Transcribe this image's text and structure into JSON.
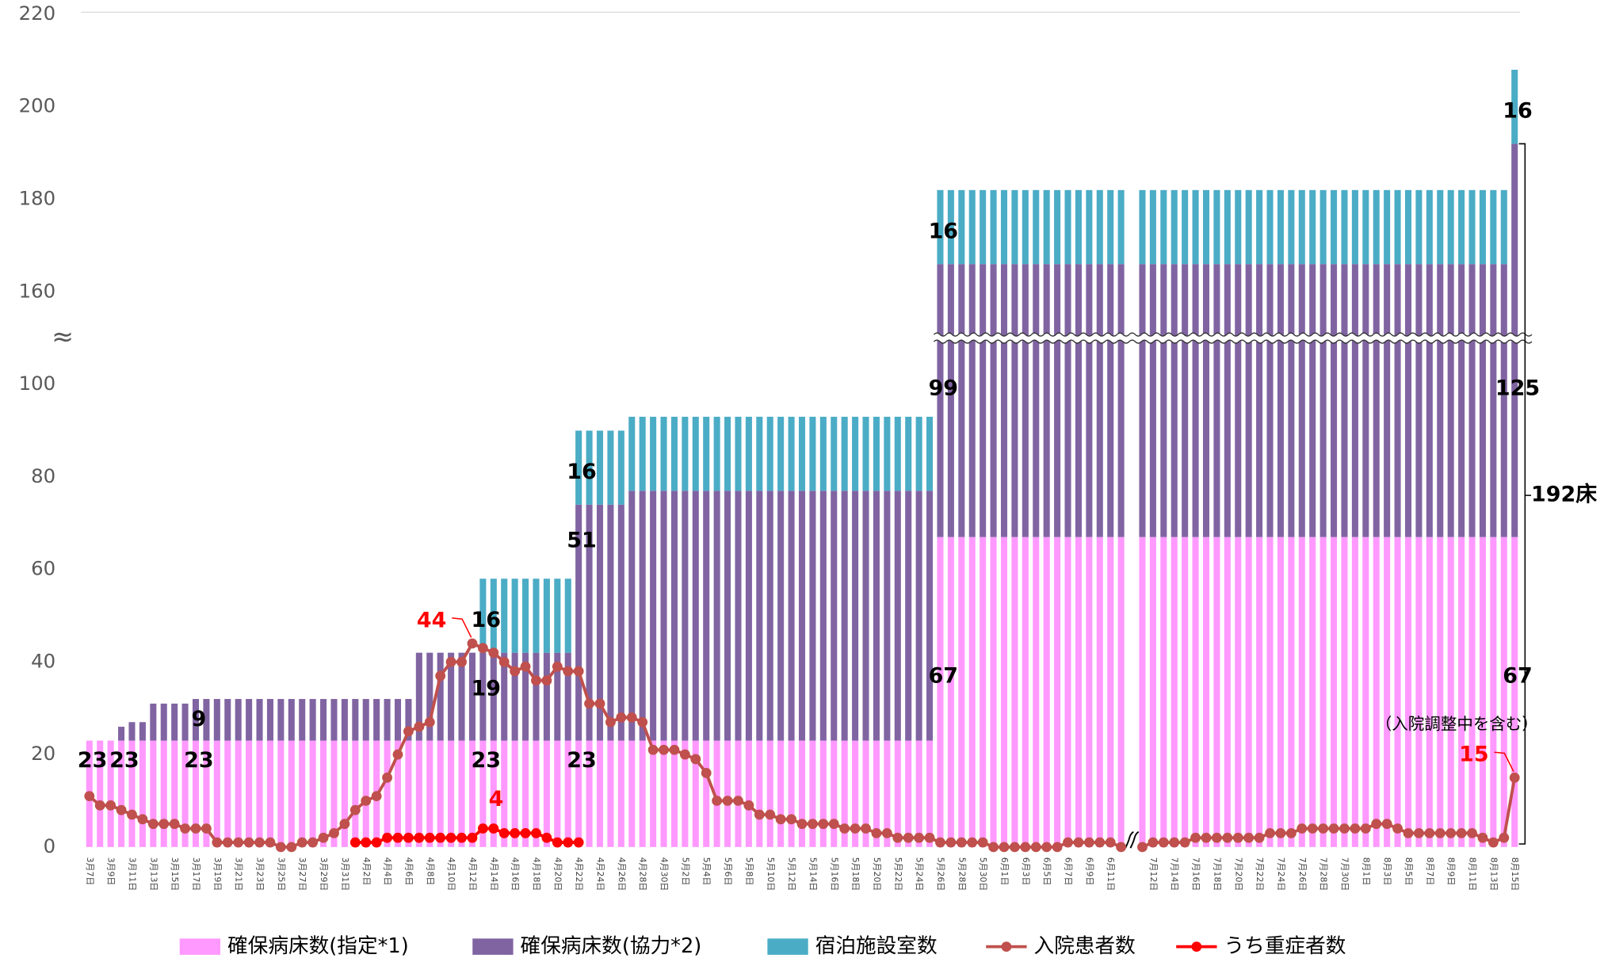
{
  "chart_data": {
    "type": "bar",
    "categories": [
      "3月7日",
      null,
      "3月9日",
      null,
      "3月11日",
      null,
      "3月13日",
      null,
      "3月15日",
      null,
      "3月17日",
      null,
      "3月19日",
      null,
      "3月21日",
      null,
      "3月23日",
      null,
      "3月25日",
      null,
      "3月27日",
      null,
      "3月29日",
      null,
      "3月31日",
      null,
      "4月2日",
      null,
      "4月4日",
      null,
      "4月6日",
      null,
      "4月8日",
      null,
      "4月10日",
      null,
      "4月12日",
      null,
      "4月14日",
      null,
      "4月16日",
      null,
      "4月18日",
      null,
      "4月20日",
      null,
      "4月22日",
      null,
      "4月24日",
      null,
      "4月26日",
      null,
      "4月28日",
      null,
      "4月30日",
      null,
      "5月2日",
      null,
      "5月4日",
      null,
      "5月6日",
      null,
      "5月8日",
      null,
      "5月10日",
      null,
      "5月12日",
      null,
      "5月14日",
      null,
      "5月16日",
      null,
      "5月18日",
      null,
      "5月20日",
      null,
      "5月22日",
      null,
      "5月24日",
      null,
      "5月26日",
      null,
      "5月28日",
      null,
      "5月30日",
      null,
      "6月1日",
      null,
      "6月3日",
      null,
      "6月5日",
      null,
      "6月7日",
      null,
      "6月9日",
      null,
      "6月11日",
      null,
      null,
      null,
      "7月12日",
      null,
      "7月14日",
      null,
      "7月16日",
      null,
      "7月18日",
      null,
      "7月20日",
      null,
      "7月22日",
      null,
      "7月24日",
      null,
      "7月26日",
      null,
      "7月28日",
      null,
      "7月30日",
      null,
      "8月1日",
      null,
      "8月3日",
      null,
      "8月5日",
      null,
      "8月7日",
      null,
      "8月9日",
      null,
      "8月11日",
      null,
      "8月13日",
      null,
      "8月15日"
    ],
    "series": [
      {
        "name": "確保病床数(指定*1)",
        "type": "bar",
        "color": "#ff99ff",
        "labeled": [
          0,
          3,
          10,
          37,
          46,
          80,
          134
        ],
        "values": [
          23,
          23,
          23,
          23,
          23,
          23,
          23,
          23,
          23,
          23,
          23,
          23,
          23,
          23,
          23,
          23,
          23,
          23,
          23,
          23,
          23,
          23,
          23,
          23,
          23,
          23,
          23,
          23,
          23,
          23,
          23,
          23,
          23,
          23,
          23,
          23,
          23,
          23,
          23,
          23,
          23,
          23,
          23,
          23,
          23,
          23,
          23,
          23,
          23,
          23,
          23,
          23,
          23,
          23,
          23,
          23,
          23,
          23,
          23,
          23,
          23,
          23,
          23,
          23,
          23,
          23,
          23,
          23,
          23,
          23,
          23,
          23,
          23,
          23,
          23,
          23,
          23,
          23,
          23,
          23,
          67,
          67,
          67,
          67,
          67,
          67,
          67,
          67,
          67,
          67,
          67,
          67,
          67,
          67,
          67,
          67,
          67,
          67,
          null,
          67,
          67,
          67,
          67,
          67,
          67,
          67,
          67,
          67,
          67,
          67,
          67,
          67,
          67,
          67,
          67,
          67,
          67,
          67,
          67,
          67,
          67,
          67,
          67,
          67,
          67,
          67,
          67,
          67,
          67,
          67,
          67,
          67,
          67,
          67,
          67
        ]
      },
      {
        "name": "確保病床数(協力*2)",
        "type": "bar",
        "color": "#8064a2",
        "labeled": [
          10,
          37,
          46,
          80,
          134
        ],
        "values": [
          0,
          0,
          0,
          3,
          4,
          4,
          8,
          8,
          8,
          8,
          9,
          9,
          9,
          9,
          9,
          9,
          9,
          9,
          9,
          9,
          9,
          9,
          9,
          9,
          9,
          9,
          9,
          9,
          9,
          9,
          9,
          19,
          19,
          19,
          19,
          19,
          19,
          19,
          19,
          19,
          19,
          19,
          19,
          19,
          19,
          19,
          51,
          51,
          51,
          51,
          51,
          54,
          54,
          54,
          54,
          54,
          54,
          54,
          54,
          54,
          54,
          54,
          54,
          54,
          54,
          54,
          54,
          54,
          54,
          54,
          54,
          54,
          54,
          54,
          54,
          54,
          54,
          54,
          54,
          54,
          99,
          99,
          99,
          99,
          99,
          99,
          99,
          99,
          99,
          99,
          99,
          99,
          99,
          99,
          99,
          99,
          99,
          99,
          null,
          99,
          99,
          99,
          99,
          99,
          99,
          99,
          99,
          99,
          99,
          99,
          99,
          99,
          99,
          99,
          99,
          99,
          99,
          99,
          99,
          99,
          99,
          99,
          99,
          99,
          99,
          99,
          99,
          99,
          99,
          99,
          99,
          99,
          99,
          99,
          125
        ]
      },
      {
        "name": "宿泊施設室数",
        "type": "bar",
        "color": "#4bacc6",
        "labeled": [
          37,
          46,
          80,
          134
        ],
        "values": [
          0,
          0,
          0,
          0,
          0,
          0,
          0,
          0,
          0,
          0,
          0,
          0,
          0,
          0,
          0,
          0,
          0,
          0,
          0,
          0,
          0,
          0,
          0,
          0,
          0,
          0,
          0,
          0,
          0,
          0,
          0,
          0,
          0,
          0,
          0,
          0,
          0,
          16,
          16,
          16,
          16,
          16,
          16,
          16,
          16,
          16,
          16,
          16,
          16,
          16,
          16,
          16,
          16,
          16,
          16,
          16,
          16,
          16,
          16,
          16,
          16,
          16,
          16,
          16,
          16,
          16,
          16,
          16,
          16,
          16,
          16,
          16,
          16,
          16,
          16,
          16,
          16,
          16,
          16,
          16,
          16,
          16,
          16,
          16,
          16,
          16,
          16,
          16,
          16,
          16,
          16,
          16,
          16,
          16,
          16,
          16,
          16,
          16,
          null,
          16,
          16,
          16,
          16,
          16,
          16,
          16,
          16,
          16,
          16,
          16,
          16,
          16,
          16,
          16,
          16,
          16,
          16,
          16,
          16,
          16,
          16,
          16,
          16,
          16,
          16,
          16,
          16,
          16,
          16,
          16,
          16,
          16,
          16,
          16,
          16
        ]
      },
      {
        "name": "入院患者数",
        "type": "line",
        "color": "#c0504d",
        "labeled": [
          36,
          134
        ],
        "values": [
          11,
          9,
          9,
          8,
          7,
          6,
          5,
          5,
          5,
          4,
          4,
          4,
          1,
          1,
          1,
          1,
          1,
          1,
          0,
          0,
          1,
          1,
          2,
          3,
          5,
          8,
          10,
          11,
          15,
          20,
          25,
          26,
          27,
          37,
          40,
          40,
          44,
          43,
          42,
          40,
          38,
          39,
          36,
          36,
          39,
          38,
          38,
          31,
          31,
          27,
          28,
          28,
          27,
          21,
          21,
          21,
          20,
          19,
          16,
          10,
          10,
          10,
          9,
          7,
          7,
          6,
          6,
          5,
          5,
          5,
          5,
          4,
          4,
          4,
          3,
          3,
          2,
          2,
          2,
          2,
          1,
          1,
          1,
          1,
          1,
          0,
          0,
          0,
          0,
          0,
          0,
          0,
          1,
          1,
          1,
          1,
          1,
          0,
          null,
          0,
          1,
          1,
          1,
          1,
          2,
          2,
          2,
          2,
          2,
          2,
          2,
          3,
          3,
          3,
          4,
          4,
          4,
          4,
          4,
          4,
          4,
          5,
          5,
          4,
          3,
          3,
          3,
          3,
          3,
          3,
          3,
          2,
          1,
          2,
          15
        ]
      },
      {
        "name": "うち重症者数",
        "type": "line",
        "color": "#ff0000",
        "labeled": [
          37
        ],
        "values": [
          null,
          null,
          null,
          null,
          null,
          null,
          null,
          null,
          null,
          null,
          null,
          null,
          null,
          null,
          null,
          null,
          null,
          null,
          null,
          null,
          null,
          null,
          null,
          null,
          null,
          1,
          1,
          1,
          2,
          2,
          2,
          2,
          2,
          2,
          2,
          2,
          2,
          4,
          4,
          3,
          3,
          3,
          3,
          2,
          1,
          1,
          1,
          null,
          null,
          null,
          null,
          null,
          null,
          null,
          null,
          null,
          null,
          null,
          null,
          null,
          null,
          null,
          null,
          null,
          null,
          null,
          null,
          null,
          null,
          null,
          null,
          null,
          null,
          null,
          null,
          null,
          null,
          null,
          null,
          null,
          null,
          null,
          null,
          null,
          null,
          null,
          null,
          null,
          null,
          null,
          null,
          null,
          null,
          null,
          null,
          null,
          null,
          null,
          null,
          null,
          null,
          null,
          null,
          null,
          null,
          null,
          null,
          null,
          null,
          null,
          null,
          null,
          null,
          null,
          null,
          null,
          null,
          null,
          null,
          null,
          null,
          null,
          null,
          null,
          null,
          null,
          null,
          null,
          null,
          null,
          null,
          null,
          null,
          null,
          null
        ]
      }
    ],
    "ylim": [
      0,
      220
    ],
    "yticks": [
      0,
      20,
      40,
      60,
      80,
      100,
      160,
      180,
      200,
      220
    ],
    "axis_break": {
      "from": 110,
      "to": 150,
      "label": "≈"
    },
    "grid": false,
    "legend": "bottom",
    "annotations": [
      "（入院調整中を含む）",
      "192床"
    ]
  }
}
